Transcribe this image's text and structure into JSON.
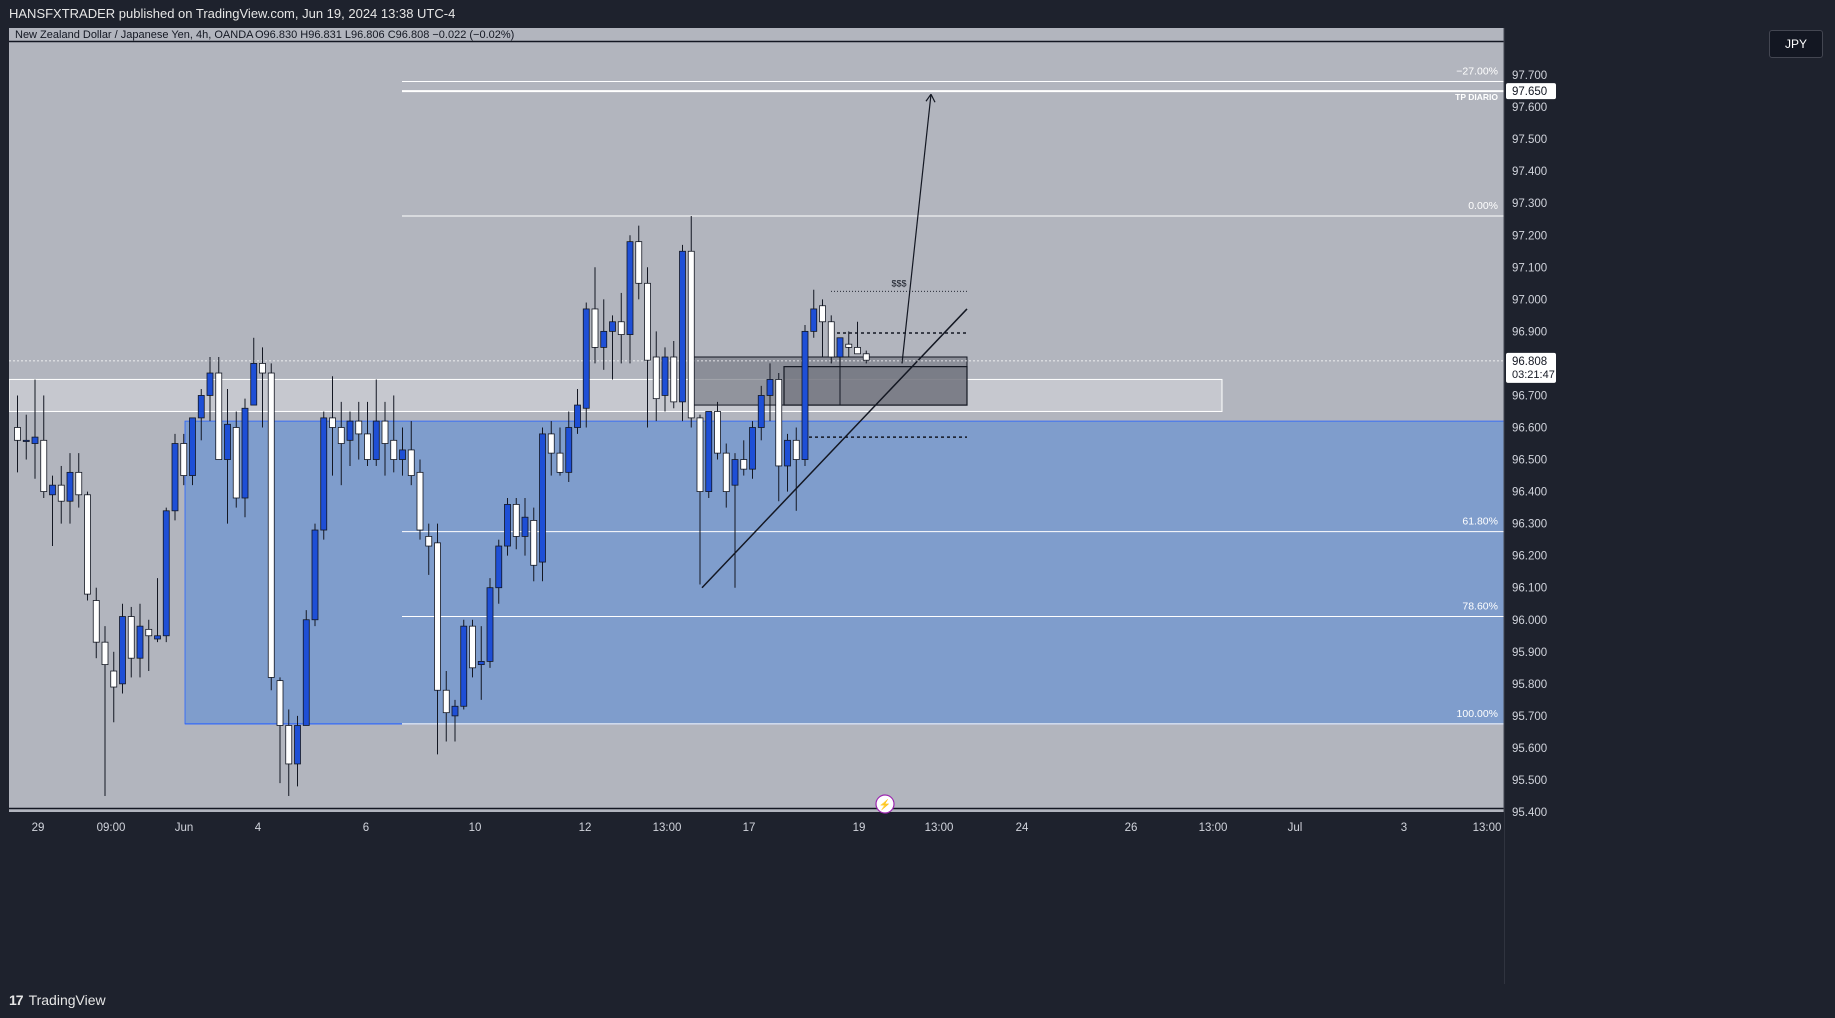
{
  "header": {
    "published": "HANSFXTRADER published on TradingView.com, Jun 19, 2024 13:38 UTC-4"
  },
  "chart_title": {
    "symbol": "New Zealand Dollar / Japanese Yen, 4h, OANDA",
    "ohlc": "O96.830  H96.831  L96.806  C96.808  −0.022 (−0.02%)"
  },
  "currency_button": "JPY",
  "footer": {
    "brand": "TradingView"
  },
  "colors": {
    "background": "#b2b5be",
    "bull": "#1e4fd6",
    "bear": "#ffffff",
    "zone_blue": "#7f9dcc",
    "ob_box": "#7a7d87"
  },
  "chart_data": {
    "type": "candlestick",
    "symbol": "NZDJPY",
    "timeframe": "4h",
    "ylim": [
      95.4,
      97.8
    ],
    "y_ticks": [
      "97.700",
      "97.600",
      "97.500",
      "97.400",
      "97.300",
      "97.200",
      "97.100",
      "97.000",
      "96.900",
      "96.800",
      "96.700",
      "96.600",
      "96.500",
      "96.400",
      "96.300",
      "96.200",
      "96.100",
      "96.000",
      "95.900",
      "95.800",
      "95.700",
      "95.600",
      "95.500",
      "95.400"
    ],
    "x_ticks": [
      "29",
      "09:00",
      "Jun",
      "4",
      "6",
      "10",
      "12",
      "13:00",
      "17",
      "19",
      "13:00",
      "24",
      "26",
      "13:00",
      "Jul",
      "3",
      "13:00"
    ],
    "last_price": "96.808",
    "countdown": "03:21:47",
    "tp_price": "97.650",
    "fib_levels": [
      {
        "label": "−27.00%",
        "price": 97.68
      },
      {
        "label": "0.00%",
        "price": 97.26
      },
      {
        "label": "61.80%",
        "price": 96.275
      },
      {
        "label": "78.60%",
        "price": 96.01
      },
      {
        "label": "100.00%",
        "price": 95.675
      }
    ],
    "annotations": {
      "tp_label": "TP DIARIO",
      "liquidity_label": "$$$"
    },
    "candles": [
      {
        "o": 96.6,
        "h": 96.7,
        "l": 96.46,
        "c": 96.56
      },
      {
        "o": 96.56,
        "h": 96.64,
        "l": 96.5,
        "c": 96.56
      },
      {
        "o": 96.55,
        "h": 96.75,
        "l": 96.44,
        "c": 96.57
      },
      {
        "o": 96.56,
        "h": 96.7,
        "l": 96.38,
        "c": 96.4
      },
      {
        "o": 96.39,
        "h": 96.45,
        "l": 96.23,
        "c": 96.42
      },
      {
        "o": 96.42,
        "h": 96.48,
        "l": 96.3,
        "c": 96.37
      },
      {
        "o": 96.37,
        "h": 96.52,
        "l": 96.3,
        "c": 96.46
      },
      {
        "o": 96.46,
        "h": 96.52,
        "l": 96.35,
        "c": 96.39
      },
      {
        "o": 96.39,
        "h": 96.4,
        "l": 96.06,
        "c": 96.08
      },
      {
        "o": 96.06,
        "h": 96.1,
        "l": 95.88,
        "c": 95.93
      },
      {
        "o": 95.93,
        "h": 95.98,
        "l": 95.45,
        "c": 95.86
      },
      {
        "o": 95.84,
        "h": 95.9,
        "l": 95.68,
        "c": 95.79
      },
      {
        "o": 95.8,
        "h": 96.05,
        "l": 95.77,
        "c": 96.01
      },
      {
        "o": 96.01,
        "h": 96.04,
        "l": 95.82,
        "c": 95.88
      },
      {
        "o": 95.88,
        "h": 96.05,
        "l": 95.82,
        "c": 95.98
      },
      {
        "o": 95.97,
        "h": 96.0,
        "l": 95.84,
        "c": 95.95
      },
      {
        "o": 95.94,
        "h": 96.13,
        "l": 95.93,
        "c": 95.95
      },
      {
        "o": 95.95,
        "h": 96.35,
        "l": 95.93,
        "c": 96.34
      },
      {
        "o": 96.34,
        "h": 96.58,
        "l": 96.31,
        "c": 96.55
      },
      {
        "o": 96.55,
        "h": 96.58,
        "l": 96.42,
        "c": 96.45
      },
      {
        "o": 96.45,
        "h": 96.63,
        "l": 96.42,
        "c": 96.63
      },
      {
        "o": 96.63,
        "h": 96.72,
        "l": 96.56,
        "c": 96.7
      },
      {
        "o": 96.7,
        "h": 96.82,
        "l": 96.62,
        "c": 96.77
      },
      {
        "o": 96.77,
        "h": 96.82,
        "l": 96.5,
        "c": 96.5
      },
      {
        "o": 96.5,
        "h": 96.72,
        "l": 96.3,
        "c": 96.61
      },
      {
        "o": 96.6,
        "h": 96.65,
        "l": 96.35,
        "c": 96.38
      },
      {
        "o": 96.38,
        "h": 96.69,
        "l": 96.32,
        "c": 96.66
      },
      {
        "o": 96.67,
        "h": 96.88,
        "l": 96.68,
        "c": 96.8
      },
      {
        "o": 96.8,
        "h": 96.85,
        "l": 96.6,
        "c": 96.77
      },
      {
        "o": 96.77,
        "h": 96.8,
        "l": 95.78,
        "c": 95.82
      },
      {
        "o": 95.81,
        "h": 95.82,
        "l": 95.49,
        "c": 95.67
      },
      {
        "o": 95.67,
        "h": 95.72,
        "l": 95.45,
        "c": 95.55
      },
      {
        "o": 95.55,
        "h": 95.7,
        "l": 95.48,
        "c": 95.67
      },
      {
        "o": 95.67,
        "h": 96.03,
        "l": 95.67,
        "c": 96.0
      },
      {
        "o": 96.0,
        "h": 96.3,
        "l": 95.98,
        "c": 96.28
      },
      {
        "o": 96.28,
        "h": 96.65,
        "l": 96.25,
        "c": 96.63
      },
      {
        "o": 96.63,
        "h": 96.76,
        "l": 96.45,
        "c": 96.6
      },
      {
        "o": 96.6,
        "h": 96.68,
        "l": 96.42,
        "c": 96.55
      },
      {
        "o": 96.56,
        "h": 96.65,
        "l": 96.48,
        "c": 96.62
      },
      {
        "o": 96.62,
        "h": 96.68,
        "l": 96.5,
        "c": 96.58
      },
      {
        "o": 96.58,
        "h": 96.68,
        "l": 96.48,
        "c": 96.5
      },
      {
        "o": 96.5,
        "h": 96.75,
        "l": 96.48,
        "c": 96.62
      },
      {
        "o": 96.62,
        "h": 96.68,
        "l": 96.45,
        "c": 96.55
      },
      {
        "o": 96.56,
        "h": 96.7,
        "l": 96.46,
        "c": 96.5
      },
      {
        "o": 96.5,
        "h": 96.6,
        "l": 96.45,
        "c": 96.53
      },
      {
        "o": 96.53,
        "h": 96.62,
        "l": 96.42,
        "c": 96.45
      },
      {
        "o": 96.46,
        "h": 96.5,
        "l": 96.25,
        "c": 96.28
      },
      {
        "o": 96.26,
        "h": 96.3,
        "l": 96.14,
        "c": 96.23
      },
      {
        "o": 96.24,
        "h": 96.3,
        "l": 95.58,
        "c": 95.78
      },
      {
        "o": 95.78,
        "h": 95.84,
        "l": 95.62,
        "c": 95.71
      },
      {
        "o": 95.7,
        "h": 95.75,
        "l": 95.62,
        "c": 95.73
      },
      {
        "o": 95.73,
        "h": 96.0,
        "l": 95.72,
        "c": 95.98
      },
      {
        "o": 95.98,
        "h": 96.0,
        "l": 95.82,
        "c": 95.85
      },
      {
        "o": 95.86,
        "h": 95.98,
        "l": 95.75,
        "c": 95.87
      },
      {
        "o": 95.87,
        "h": 96.13,
        "l": 95.85,
        "c": 96.1
      },
      {
        "o": 96.1,
        "h": 96.25,
        "l": 96.05,
        "c": 96.23
      },
      {
        "o": 96.23,
        "h": 96.38,
        "l": 96.2,
        "c": 96.36
      },
      {
        "o": 96.36,
        "h": 96.38,
        "l": 96.22,
        "c": 96.26
      },
      {
        "o": 96.26,
        "h": 96.38,
        "l": 96.2,
        "c": 96.32
      },
      {
        "o": 96.31,
        "h": 96.35,
        "l": 96.12,
        "c": 96.17
      },
      {
        "o": 96.18,
        "h": 96.6,
        "l": 96.12,
        "c": 96.58
      },
      {
        "o": 96.58,
        "h": 96.62,
        "l": 96.45,
        "c": 96.52
      },
      {
        "o": 96.52,
        "h": 96.6,
        "l": 96.45,
        "c": 96.46
      },
      {
        "o": 96.46,
        "h": 96.65,
        "l": 96.43,
        "c": 96.6
      },
      {
        "o": 96.6,
        "h": 96.72,
        "l": 96.58,
        "c": 96.67
      },
      {
        "o": 96.66,
        "h": 96.99,
        "l": 96.6,
        "c": 96.97
      },
      {
        "o": 96.97,
        "h": 97.1,
        "l": 96.8,
        "c": 96.85
      },
      {
        "o": 96.85,
        "h": 97.0,
        "l": 96.78,
        "c": 96.9
      },
      {
        "o": 96.9,
        "h": 96.95,
        "l": 96.75,
        "c": 96.93
      },
      {
        "o": 96.93,
        "h": 97.02,
        "l": 96.8,
        "c": 96.89
      },
      {
        "o": 96.89,
        "h": 97.2,
        "l": 96.8,
        "c": 97.18
      },
      {
        "o": 97.18,
        "h": 97.23,
        "l": 97.0,
        "c": 97.05
      },
      {
        "o": 97.05,
        "h": 97.1,
        "l": 96.6,
        "c": 96.81
      },
      {
        "o": 96.82,
        "h": 96.9,
        "l": 96.62,
        "c": 96.69
      },
      {
        "o": 96.7,
        "h": 96.85,
        "l": 96.65,
        "c": 96.82
      },
      {
        "o": 96.82,
        "h": 96.87,
        "l": 96.66,
        "c": 96.68
      },
      {
        "o": 96.68,
        "h": 97.17,
        "l": 96.62,
        "c": 97.15
      },
      {
        "o": 97.15,
        "h": 97.26,
        "l": 96.6,
        "c": 96.63
      },
      {
        "o": 96.63,
        "h": 96.64,
        "l": 96.11,
        "c": 96.4
      },
      {
        "o": 96.4,
        "h": 96.65,
        "l": 96.38,
        "c": 96.65
      },
      {
        "o": 96.65,
        "h": 96.68,
        "l": 96.5,
        "c": 96.52
      },
      {
        "o": 96.52,
        "h": 96.55,
        "l": 96.35,
        "c": 96.4
      },
      {
        "o": 96.42,
        "h": 96.52,
        "l": 96.1,
        "c": 96.5
      },
      {
        "o": 96.5,
        "h": 96.56,
        "l": 96.45,
        "c": 96.47
      },
      {
        "o": 96.47,
        "h": 96.62,
        "l": 96.44,
        "c": 96.6
      },
      {
        "o": 96.6,
        "h": 96.73,
        "l": 96.56,
        "c": 96.7
      },
      {
        "o": 96.7,
        "h": 96.8,
        "l": 96.62,
        "c": 96.75
      },
      {
        "o": 96.75,
        "h": 96.77,
        "l": 96.37,
        "c": 96.48
      },
      {
        "o": 96.48,
        "h": 96.58,
        "l": 96.4,
        "c": 96.56
      },
      {
        "o": 96.56,
        "h": 96.6,
        "l": 96.34,
        "c": 96.5
      },
      {
        "o": 96.5,
        "h": 96.92,
        "l": 96.48,
        "c": 96.9
      },
      {
        "o": 96.9,
        "h": 97.03,
        "l": 96.88,
        "c": 96.97
      },
      {
        "o": 96.98,
        "h": 97.0,
        "l": 96.82,
        "c": 96.93
      },
      {
        "o": 96.93,
        "h": 96.95,
        "l": 96.8,
        "c": 96.82
      },
      {
        "o": 96.82,
        "h": 96.88,
        "l": 96.67,
        "c": 96.88
      },
      {
        "o": 96.86,
        "h": 96.9,
        "l": 96.82,
        "c": 96.85
      },
      {
        "o": 96.85,
        "h": 96.93,
        "l": 96.83,
        "c": 96.83
      },
      {
        "o": 96.83,
        "h": 96.84,
        "l": 96.8,
        "c": 96.81
      }
    ]
  }
}
